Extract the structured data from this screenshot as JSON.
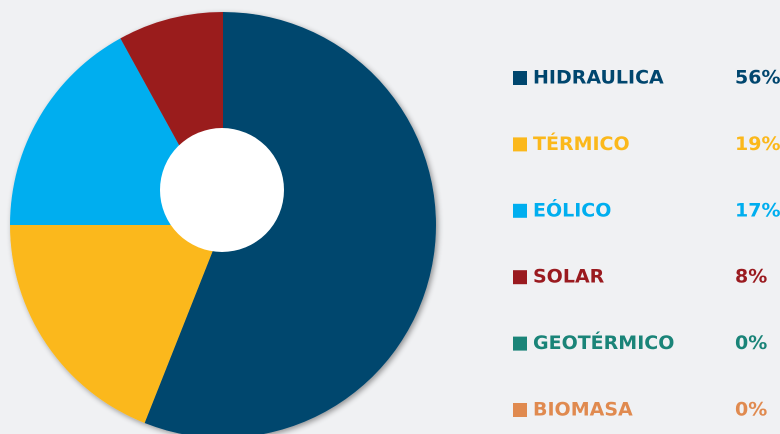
{
  "chart_data": {
    "type": "pie",
    "categories": [
      "HIDRAULICA",
      "TÉRMICO",
      "EÓLICO",
      "SOLAR",
      "GEOTÉRMICO",
      "BIOMASA"
    ],
    "values": [
      56,
      19,
      17,
      8,
      0,
      0
    ],
    "value_labels": [
      "56%",
      "19%",
      "17%",
      "8%",
      "0%",
      "0%"
    ],
    "colors": [
      "#00466e",
      "#fbb81b",
      "#00aeef",
      "#9a1a1f",
      "#1a8478",
      "#e08a4f"
    ],
    "legend": "right"
  }
}
